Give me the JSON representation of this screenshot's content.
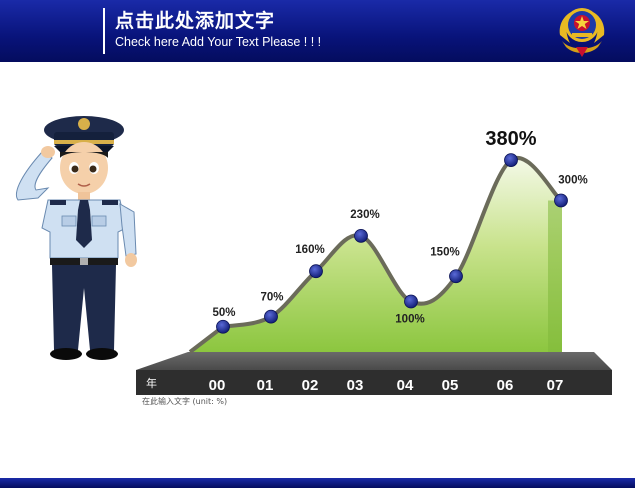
{
  "header": {
    "title": "点击此处添加文字",
    "subtitle": "Check here Add Your Text Please ! ! !"
  },
  "footnote": "在此输入文字 (unit: %)",
  "colors": {
    "header_blue": "#0a1585",
    "area_green": "#8cc63f",
    "marker_navy": "#1c2a8a",
    "platform_dark": "#3a3a3a"
  },
  "icons": [
    "police-emblem-icon",
    "police-officer-illustration"
  ],
  "chart_data": {
    "type": "area",
    "xaxis_title": "年",
    "categories": [
      "00",
      "01",
      "02",
      "03",
      "04",
      "05",
      "06",
      "07"
    ],
    "values": [
      50,
      70,
      160,
      230,
      100,
      150,
      380,
      300
    ],
    "value_labels": [
      "50%",
      "70%",
      "160%",
      "230%",
      "100%",
      "150%",
      "380%",
      "300%"
    ],
    "ylim": [
      0,
      400
    ],
    "grid": false,
    "legend": "none",
    "highlight_index": 6
  }
}
